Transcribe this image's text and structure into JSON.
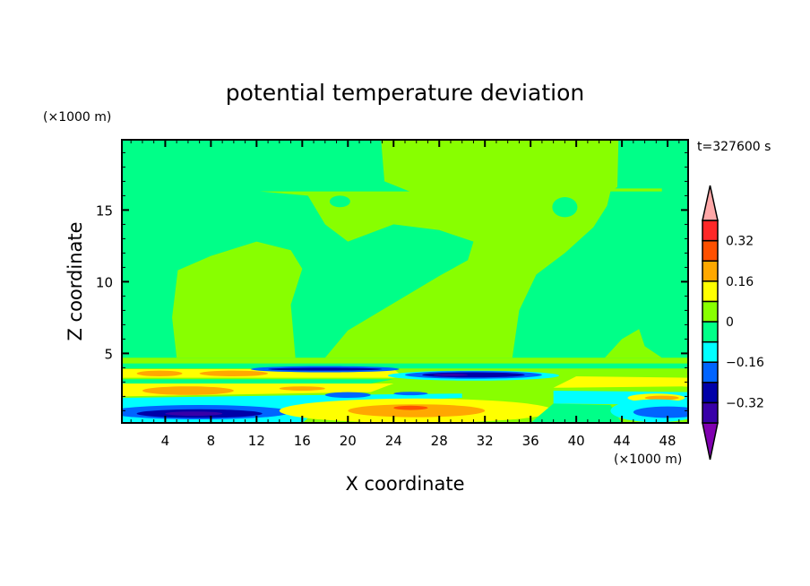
{
  "chart_data": {
    "type": "heatmap",
    "subtype": "filled-contour",
    "title": "potential temperature deviation",
    "xlabel": "X coordinate",
    "ylabel": "Z coordinate",
    "x_unit_label": "(×1000 m)",
    "y_unit_label": "(×1000 m)",
    "time_label": "t=327600 s",
    "xlim": [
      0.2,
      49.8
    ],
    "ylim": [
      0.15,
      19.9
    ],
    "x_ticks": [
      4,
      8,
      12,
      16,
      20,
      24,
      28,
      32,
      36,
      40,
      44,
      48
    ],
    "x_tick_labels": [
      "4",
      "8",
      "12",
      "16",
      "20",
      "24",
      "28",
      "32",
      "36",
      "40",
      "44",
      "48"
    ],
    "y_ticks": [
      5,
      10,
      15
    ],
    "y_tick_labels": [
      "5",
      "10",
      "15"
    ],
    "colorbar": {
      "levels": [
        -0.4,
        -0.32,
        -0.24,
        -0.16,
        -0.08,
        0,
        0.08,
        0.16,
        0.24,
        0.32,
        0.4
      ],
      "labels": [
        {
          "value": 0.32,
          "text": "0.32"
        },
        {
          "value": 0.16,
          "text": "0.16"
        },
        {
          "value": 0,
          "text": "0"
        },
        {
          "value": -0.16,
          "text": "−0.16"
        },
        {
          "value": -0.32,
          "text": "−0.32"
        }
      ],
      "colors": [
        "#8000b0",
        "#3800a8",
        "#0000a8",
        "#0064ff",
        "#00ffff",
        "#00ff88",
        "#88ff00",
        "#ffff00",
        "#ffa800",
        "#ff5000",
        "#ff2828",
        "#ffa8a8"
      ],
      "extend": "both"
    },
    "background_level_color": "#00ff88",
    "regions": [
      {
        "color": "#88ff00",
        "poly": [
          [
            5,
            4.7
          ],
          [
            4.6,
            7.5
          ],
          [
            5.1,
            10.8
          ],
          [
            8,
            11.8
          ],
          [
            12,
            12.8
          ],
          [
            15,
            12.2
          ],
          [
            16,
            10.9
          ],
          [
            15,
            8.4
          ],
          [
            15.4,
            4.7
          ]
        ]
      },
      {
        "color": "#88ff00",
        "poly": [
          [
            22.9,
            19.9
          ],
          [
            43.7,
            19.9
          ],
          [
            43.6,
            16.6
          ],
          [
            43,
            16.3
          ],
          [
            42.7,
            15.3
          ],
          [
            41.5,
            13.8
          ],
          [
            39,
            12
          ],
          [
            36.5,
            10.5
          ],
          [
            35,
            8
          ],
          [
            34.4,
            4.7
          ],
          [
            18,
            4.7
          ],
          [
            20,
            6.6
          ],
          [
            24,
            8.5
          ],
          [
            28,
            10.4
          ],
          [
            30.5,
            11.5
          ],
          [
            31,
            12.8
          ],
          [
            28,
            13.6
          ],
          [
            24,
            14
          ],
          [
            20,
            12.8
          ],
          [
            18,
            14
          ],
          [
            16.5,
            16
          ],
          [
            12.3,
            16.3
          ],
          [
            25.4,
            16.3
          ],
          [
            23.2,
            17
          ]
        ]
      },
      {
        "color": "#88ff00",
        "poly": [
          [
            30,
            16.3
          ],
          [
            47.5,
            16.3
          ],
          [
            47.5,
            16.5
          ],
          [
            30,
            16.5
          ]
        ]
      },
      {
        "color": "#88ff00",
        "poly": [
          [
            42.5,
            4.7
          ],
          [
            44,
            6
          ],
          [
            45.5,
            6.7
          ],
          [
            46,
            5.5
          ],
          [
            47.5,
            4.7
          ]
        ]
      },
      {
        "color": "#00ff88",
        "ellipse": [
          19.3,
          15.6,
          0.9,
          0.4
        ]
      },
      {
        "color": "#00ff88",
        "ellipse": [
          39,
          15.2,
          1.1,
          0.7
        ]
      },
      {
        "color": "#88ff00",
        "poly": [
          [
            0.2,
            0.15
          ],
          [
            49.8,
            0.15
          ],
          [
            49.8,
            4.7
          ],
          [
            0.2,
            4.7
          ]
        ]
      },
      {
        "color": "#00ff88",
        "poly": [
          [
            0.2,
            3.95
          ],
          [
            49.8,
            3.95
          ],
          [
            49.8,
            4.3
          ],
          [
            0.2,
            4.3
          ]
        ]
      },
      {
        "color": "#ffff00",
        "poly": [
          [
            0.2,
            3.3
          ],
          [
            25,
            3.3
          ],
          [
            24,
            3.9
          ],
          [
            0.2,
            3.9
          ]
        ]
      },
      {
        "color": "#ffa800",
        "ellipse": [
          3.5,
          3.6,
          2,
          0.2
        ]
      },
      {
        "color": "#ffa800",
        "ellipse": [
          10,
          3.6,
          3,
          0.2
        ]
      },
      {
        "color": "#0064ff",
        "ellipse": [
          18,
          3.9,
          6.5,
          0.22
        ]
      },
      {
        "color": "#0000a8",
        "ellipse": [
          18,
          3.9,
          5,
          0.1
        ]
      },
      {
        "color": "#00ffff",
        "ellipse": [
          31,
          3.45,
          7.5,
          0.35
        ]
      },
      {
        "color": "#0064ff",
        "ellipse": [
          31,
          3.5,
          6,
          0.27
        ]
      },
      {
        "color": "#0000a8",
        "ellipse": [
          31,
          3.5,
          4.5,
          0.18
        ]
      },
      {
        "color": "#3800a8",
        "ellipse": [
          29,
          3.5,
          1.5,
          0.08
        ]
      },
      {
        "color": "#ffff00",
        "poly": [
          [
            38,
            2.6
          ],
          [
            49.8,
            2.7
          ],
          [
            49.8,
            3.3
          ],
          [
            40,
            3.4
          ]
        ]
      },
      {
        "color": "#00ff88",
        "poly": [
          [
            0.2,
            2.9
          ],
          [
            22,
            2.9
          ],
          [
            24,
            3.2
          ],
          [
            0.2,
            3.2
          ]
        ]
      },
      {
        "color": "#ffff00",
        "poly": [
          [
            0.2,
            2.0
          ],
          [
            22,
            2.3
          ],
          [
            24,
            2.9
          ],
          [
            0.2,
            2.9
          ]
        ]
      },
      {
        "color": "#ffa800",
        "ellipse": [
          6,
          2.4,
          4,
          0.3
        ]
      },
      {
        "color": "#ffa800",
        "ellipse": [
          16,
          2.55,
          2,
          0.15
        ]
      },
      {
        "color": "#00ffff",
        "poly": [
          [
            0.2,
            1.3
          ],
          [
            18,
            1.5
          ],
          [
            30,
            1.9
          ],
          [
            30,
            2.2
          ],
          [
            18,
            2.1
          ],
          [
            0.2,
            1.9
          ]
        ]
      },
      {
        "color": "#0064ff",
        "ellipse": [
          20,
          2.1,
          2,
          0.2
        ]
      },
      {
        "color": "#0064ff",
        "ellipse": [
          25.5,
          2.2,
          1.5,
          0.12
        ]
      },
      {
        "color": "#00ffff",
        "poly": [
          [
            38,
            1.5
          ],
          [
            49.8,
            1.4
          ],
          [
            49.8,
            2.3
          ],
          [
            38,
            2.4
          ]
        ]
      },
      {
        "color": "#ffff00",
        "ellipse": [
          47,
          1.9,
          2.5,
          0.3
        ]
      },
      {
        "color": "#ffa800",
        "ellipse": [
          47.5,
          1.9,
          1.5,
          0.15
        ]
      },
      {
        "color": "#00ffff",
        "poly": [
          [
            0.2,
            0.15
          ],
          [
            16,
            0.15
          ],
          [
            18,
            1.5
          ],
          [
            0.2,
            1.4
          ]
        ]
      },
      {
        "color": "#0064ff",
        "ellipse": [
          7,
          0.9,
          8,
          0.5
        ]
      },
      {
        "color": "#0000a8",
        "ellipse": [
          7,
          0.8,
          5.5,
          0.3
        ]
      },
      {
        "color": "#3800a8",
        "ellipse": [
          6.5,
          0.8,
          2.5,
          0.15
        ]
      },
      {
        "color": "#ffff00",
        "ellipse": [
          26,
          1.0,
          12,
          0.85
        ]
      },
      {
        "color": "#ffa800",
        "ellipse": [
          26,
          1.0,
          6,
          0.45
        ]
      },
      {
        "color": "#ff5000",
        "ellipse": [
          25.5,
          1.2,
          1.5,
          0.15
        ]
      },
      {
        "color": "#00ff88",
        "poly": [
          [
            36,
            0.15
          ],
          [
            44,
            0.15
          ],
          [
            43,
            1.4
          ],
          [
            38,
            1.5
          ]
        ]
      },
      {
        "color": "#00ffff",
        "ellipse": [
          47,
          1.0,
          4,
          0.8
        ]
      },
      {
        "color": "#0064ff",
        "ellipse": [
          48,
          0.9,
          3,
          0.4
        ]
      }
    ]
  }
}
